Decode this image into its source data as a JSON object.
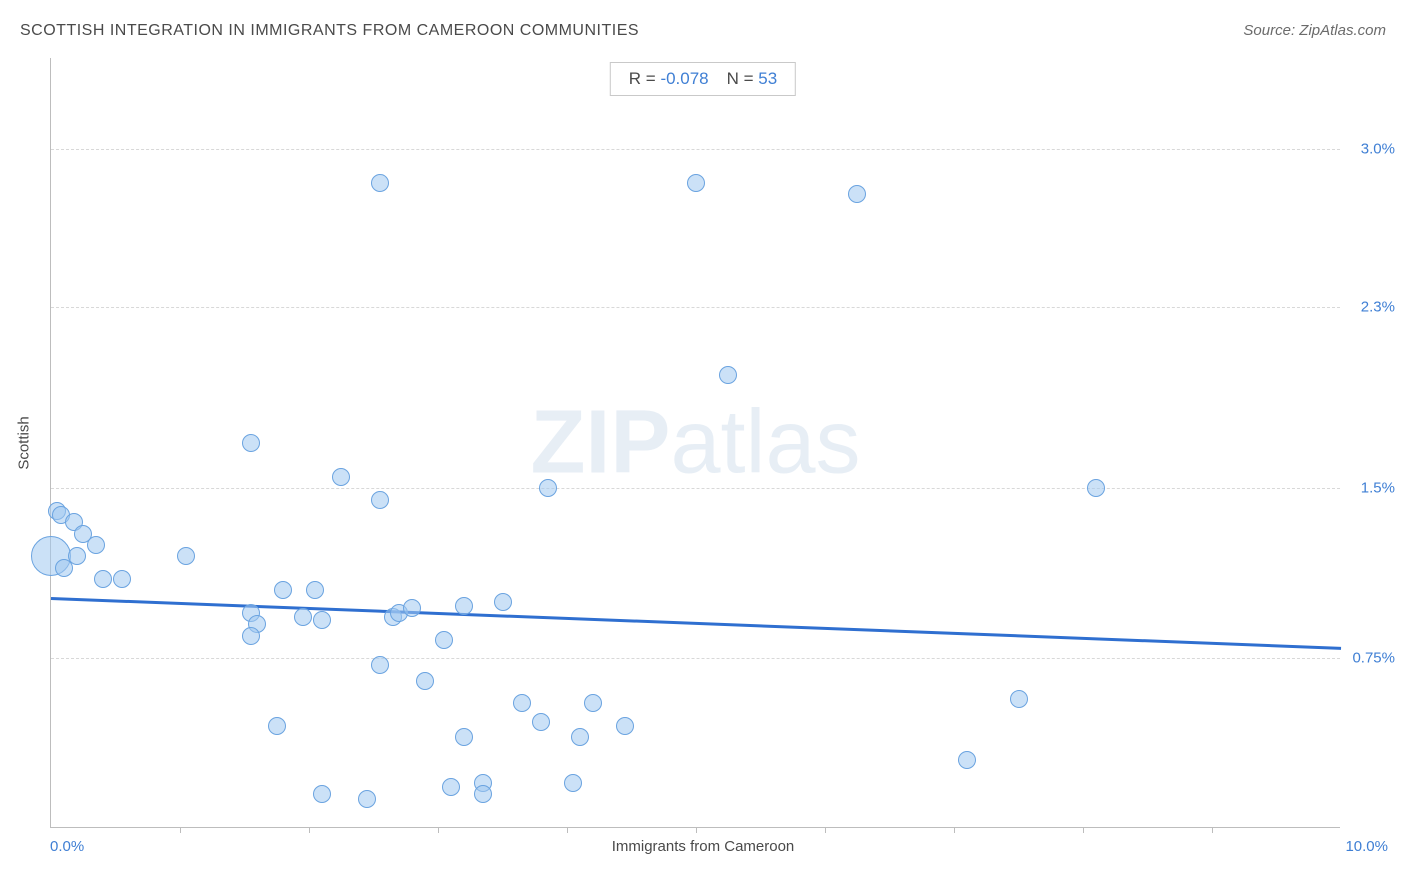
{
  "title": "SCOTTISH INTEGRATION IN IMMIGRANTS FROM CAMEROON COMMUNITIES",
  "source_prefix": "Source: ",
  "source_name": "ZipAtlas.com",
  "stats": {
    "r_label": "R = ",
    "r_value": "-0.078",
    "n_label": "N = ",
    "n_value": "53"
  },
  "watermark": {
    "bold": "ZIP",
    "rest": "atlas"
  },
  "chart": {
    "type": "scatter",
    "xlabel": "Immigrants from Cameroon",
    "ylabel": "Scottish",
    "xlim": [
      0.0,
      10.0
    ],
    "ylim": [
      0.0,
      3.4
    ],
    "x_min_label": "0.0%",
    "x_max_label": "10.0%",
    "y_ticks": [
      0.75,
      1.5,
      2.3,
      3.0
    ],
    "y_tick_labels": [
      "0.75%",
      "1.5%",
      "2.3%",
      "3.0%"
    ],
    "x_minor_ticks": [
      1,
      2,
      3,
      4,
      5,
      6,
      7,
      8,
      9
    ],
    "background_color": "#ffffff",
    "grid_color": "#d8d8d8",
    "axis_color": "#bdbdbd",
    "label_color": "#3f7fd4",
    "title_color": "#4a4a4a",
    "watermark_color": "rgba(120,160,200,0.18)",
    "point_fill": "rgba(160,200,240,0.55)",
    "point_stroke": "#6aa3e0",
    "point_radius": 9,
    "trend_color": "#2f6fd0",
    "trend_width": 3,
    "trend_line": {
      "x1": 0.0,
      "y1": 1.02,
      "x2": 10.0,
      "y2": 0.8
    },
    "points": [
      {
        "x": 0.0,
        "y": 1.2,
        "r": 20
      },
      {
        "x": 0.05,
        "y": 1.4
      },
      {
        "x": 0.08,
        "y": 1.38
      },
      {
        "x": 0.18,
        "y": 1.35
      },
      {
        "x": 0.25,
        "y": 1.3
      },
      {
        "x": 0.35,
        "y": 1.25
      },
      {
        "x": 0.2,
        "y": 1.2
      },
      {
        "x": 0.1,
        "y": 1.15
      },
      {
        "x": 0.4,
        "y": 1.1
      },
      {
        "x": 0.55,
        "y": 1.1
      },
      {
        "x": 1.05,
        "y": 1.2
      },
      {
        "x": 1.55,
        "y": 1.7
      },
      {
        "x": 1.55,
        "y": 0.95
      },
      {
        "x": 1.6,
        "y": 0.9
      },
      {
        "x": 1.55,
        "y": 0.85
      },
      {
        "x": 1.75,
        "y": 0.45
      },
      {
        "x": 1.8,
        "y": 1.05
      },
      {
        "x": 1.95,
        "y": 0.93
      },
      {
        "x": 2.05,
        "y": 1.05
      },
      {
        "x": 2.1,
        "y": 0.92
      },
      {
        "x": 2.1,
        "y": 0.15
      },
      {
        "x": 2.25,
        "y": 1.55
      },
      {
        "x": 2.45,
        "y": 0.13
      },
      {
        "x": 2.55,
        "y": 0.72
      },
      {
        "x": 2.55,
        "y": 1.45
      },
      {
        "x": 2.55,
        "y": 2.85
      },
      {
        "x": 2.65,
        "y": 0.93
      },
      {
        "x": 2.7,
        "y": 0.95
      },
      {
        "x": 2.8,
        "y": 0.97
      },
      {
        "x": 2.9,
        "y": 0.65
      },
      {
        "x": 3.05,
        "y": 0.83
      },
      {
        "x": 3.1,
        "y": 0.18
      },
      {
        "x": 3.2,
        "y": 0.98
      },
      {
        "x": 3.2,
        "y": 0.4
      },
      {
        "x": 3.35,
        "y": 0.2
      },
      {
        "x": 3.35,
        "y": 0.15
      },
      {
        "x": 3.5,
        "y": 1.0
      },
      {
        "x": 3.65,
        "y": 0.55
      },
      {
        "x": 3.8,
        "y": 0.47
      },
      {
        "x": 3.85,
        "y": 1.5
      },
      {
        "x": 4.05,
        "y": 0.2
      },
      {
        "x": 4.1,
        "y": 0.4
      },
      {
        "x": 4.2,
        "y": 0.55
      },
      {
        "x": 4.45,
        "y": 0.45
      },
      {
        "x": 5.25,
        "y": 2.0
      },
      {
        "x": 5.0,
        "y": 2.85
      },
      {
        "x": 6.25,
        "y": 2.8
      },
      {
        "x": 7.5,
        "y": 0.57
      },
      {
        "x": 7.1,
        "y": 0.3
      },
      {
        "x": 8.1,
        "y": 1.5
      }
    ]
  }
}
